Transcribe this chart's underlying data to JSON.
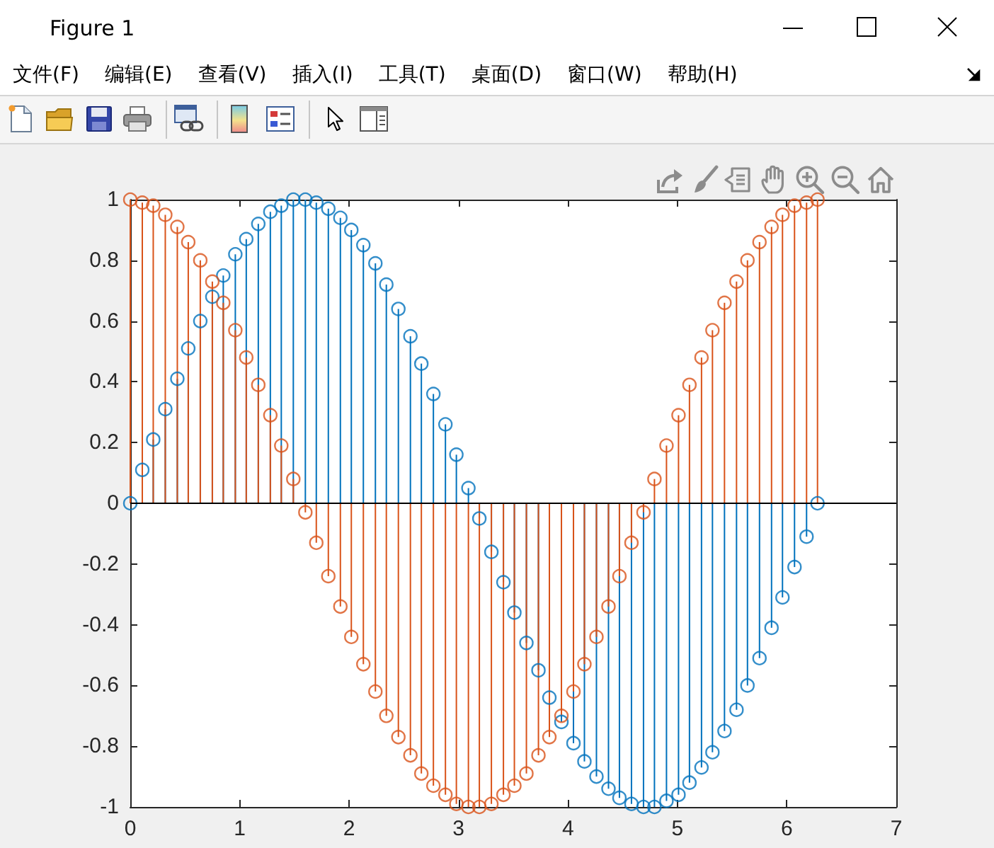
{
  "chart_data": {
    "type": "lollipop",
    "x": [
      0,
      0.11,
      0.21,
      0.32,
      0.43,
      0.53,
      0.64,
      0.75,
      0.85,
      0.96,
      1.06,
      1.17,
      1.28,
      1.38,
      1.49,
      1.6,
      1.7,
      1.81,
      1.92,
      2.02,
      2.13,
      2.24,
      2.34,
      2.45,
      2.56,
      2.66,
      2.77,
      2.88,
      2.98,
      3.09,
      3.19,
      3.3,
      3.41,
      3.51,
      3.62,
      3.73,
      3.83,
      3.94,
      4.05,
      4.15,
      4.26,
      4.37,
      4.47,
      4.58,
      4.69,
      4.79,
      4.9,
      5.01,
      5.11,
      5.22,
      5.32,
      5.43,
      5.54,
      5.64,
      5.75,
      5.86,
      5.96,
      6.07,
      6.18,
      6.28
    ],
    "series": [
      {
        "color": "#0072bd",
        "values": [
          0,
          0.11,
          0.21,
          0.31,
          0.41,
          0.51,
          0.6,
          0.68,
          0.75,
          0.82,
          0.87,
          0.92,
          0.96,
          0.98,
          1,
          1,
          0.99,
          0.97,
          0.94,
          0.9,
          0.85,
          0.79,
          0.72,
          0.64,
          0.55,
          0.46,
          0.36,
          0.26,
          0.16,
          0.05,
          -0.05,
          -0.16,
          -0.26,
          -0.36,
          -0.46,
          -0.55,
          -0.64,
          -0.72,
          -0.79,
          -0.85,
          -0.9,
          -0.94,
          -0.97,
          -0.99,
          -1,
          -1,
          -0.98,
          -0.96,
          -0.92,
          -0.87,
          -0.82,
          -0.75,
          -0.68,
          -0.6,
          -0.51,
          -0.41,
          -0.31,
          -0.21,
          -0.11,
          0
        ]
      },
      {
        "color": "#d95319",
        "values": [
          1,
          0.99,
          0.98,
          0.95,
          0.91,
          0.86,
          0.8,
          0.73,
          0.66,
          0.57,
          0.48,
          0.39,
          0.29,
          0.19,
          0.08,
          -0.03,
          -0.13,
          -0.24,
          -0.34,
          -0.44,
          -0.53,
          -0.62,
          -0.7,
          -0.77,
          -0.83,
          -0.89,
          -0.93,
          -0.96,
          -0.99,
          -1,
          -1,
          -0.99,
          -0.96,
          -0.93,
          -0.89,
          -0.83,
          -0.77,
          -0.7,
          -0.62,
          -0.53,
          -0.44,
          -0.34,
          -0.24,
          -0.13,
          -0.03,
          0.08,
          0.19,
          0.29,
          0.39,
          0.48,
          0.57,
          0.66,
          0.73,
          0.8,
          0.86,
          0.91,
          0.95,
          0.98,
          0.99,
          1
        ]
      }
    ],
    "xlim": [
      0,
      7
    ],
    "xticks": [
      0,
      1,
      2,
      3,
      4,
      5,
      6,
      7
    ],
    "ylim": [
      -1,
      1
    ],
    "yticks": [
      -1,
      -0.8,
      -0.6,
      -0.4,
      -0.2,
      0,
      0.2,
      0.4,
      0.6,
      0.8,
      1
    ],
    "marker": "circle",
    "ref_lines": [
      {
        "axis": "y",
        "value": 0,
        "color": "#000000"
      }
    ],
    "annotations": [
      "Figure 1",
      "文件(F)",
      "编辑(E)",
      "查看(V)",
      "插入(I)",
      "工具(T)",
      "桌面(D)",
      "窗口(W)",
      "帮助(H)"
    ]
  }
}
